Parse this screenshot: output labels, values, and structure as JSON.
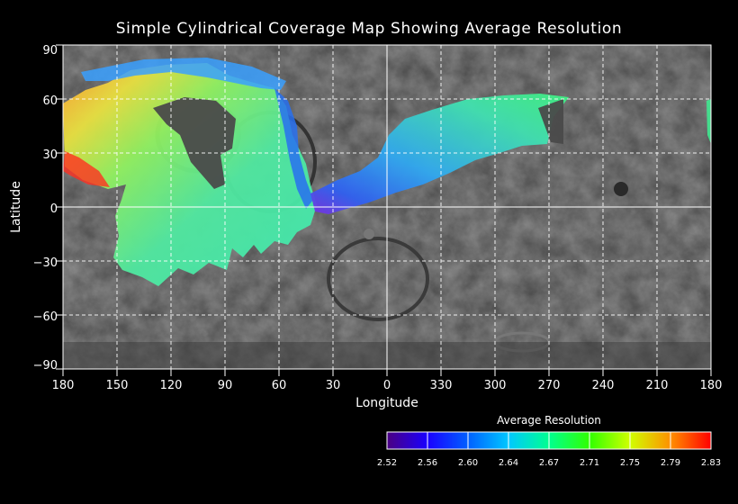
{
  "title": "Simple Cylindrical Coverage Map Showing Average Resolution",
  "map": {
    "x_axis_label": "Longitude",
    "y_axis_label": "Latitude",
    "x_ticks": [
      "180",
      "150",
      "120",
      "90",
      "60",
      "30",
      "0",
      "330",
      "300",
      "270",
      "240",
      "210",
      "180"
    ],
    "y_ticks": [
      "90",
      "60",
      "30",
      "0",
      "−30",
      "−60",
      "−90"
    ],
    "grid": true,
    "background": "grayscale planetary surface mosaic"
  },
  "colorbar": {
    "title": "Average Resolution",
    "tick_labels": [
      "2.52",
      "2.56",
      "2.60",
      "2.64",
      "2.67",
      "2.71",
      "2.75",
      "2.79",
      "2.83"
    ],
    "colors": [
      "#4b0082",
      "#0000ff",
      "#00a0ff",
      "#00e0c0",
      "#00ff40",
      "#80ff00",
      "#ffe000",
      "#ff8000",
      "#ff0000"
    ]
  },
  "colors": {
    "background": "#000000",
    "grid": "#ffffff",
    "text": "#ffffff"
  }
}
